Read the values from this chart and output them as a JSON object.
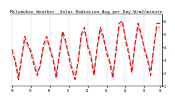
{
  "title": "Milwaukee Weather  Solar Radiation Avg per Day W/m2/minute",
  "title_fontsize": 3.2,
  "background_color": "#ffffff",
  "plot_bg_color": "#ffffff",
  "red_line": [
    3.8,
    2.8,
    1.5,
    3.2,
    4.8,
    4.2,
    3.5,
    2.5,
    1.8,
    2.8,
    4.2,
    4.8,
    3.8,
    3.0,
    1.6,
    3.5,
    5.2,
    4.5,
    3.2,
    2.2,
    1.5,
    3.0,
    5.0,
    5.5,
    4.0,
    3.2,
    1.8,
    4.0,
    5.5,
    4.8,
    3.5,
    2.8,
    1.6,
    3.8,
    5.8,
    6.0,
    4.5,
    3.5,
    2.0,
    4.2,
    5.8,
    5.0,
    3.8,
    3.0,
    1.8,
    4.0,
    5.8,
    5.8
  ],
  "black_line": [
    3.5,
    3.0,
    1.8,
    3.0,
    4.5,
    4.0,
    3.8,
    2.8,
    2.0,
    2.5,
    4.0,
    4.5,
    4.0,
    3.2,
    2.0,
    3.2,
    5.0,
    4.2,
    3.5,
    2.5,
    1.8,
    2.8,
    4.8,
    5.2,
    4.2,
    3.5,
    2.2,
    3.8,
    5.2,
    4.5,
    3.8,
    3.0,
    2.0,
    3.5,
    5.5,
    5.8,
    4.8,
    3.8,
    2.2,
    4.0,
    5.5,
    4.8,
    4.0,
    3.2,
    2.2,
    3.8,
    5.5,
    5.5
  ],
  "ylim": [
    1.0,
    6.5
  ],
  "ytick_labels": [
    "6",
    "5",
    "4",
    "3",
    "2",
    "1"
  ],
  "ytick_vals": [
    6,
    5,
    4,
    3,
    2,
    1
  ],
  "n_points": 48,
  "vgrid_positions": [
    0,
    6,
    12,
    18,
    24,
    30,
    36,
    42,
    47
  ],
  "xtick_labels": [
    "98",
    "99",
    "00",
    "01",
    "02",
    "03",
    "04",
    "05",
    "06"
  ],
  "xtick_positions": [
    0,
    6,
    12,
    18,
    24,
    30,
    36,
    42,
    47
  ]
}
